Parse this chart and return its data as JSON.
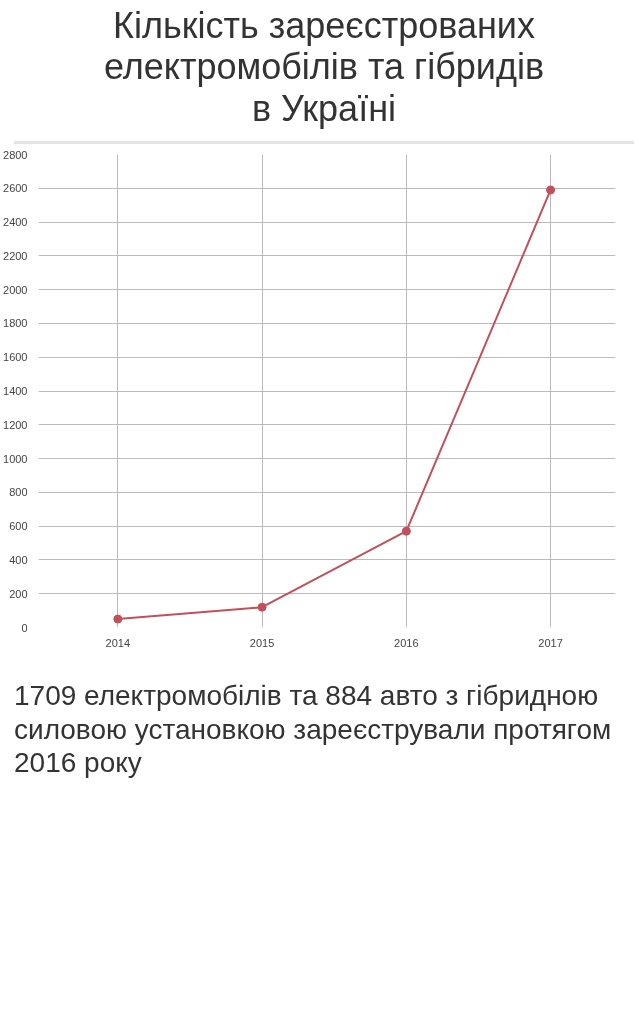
{
  "chart_data": {
    "type": "line",
    "title": "Кількість зареєстрованих\nелектромобілів та гібридів\nв Україні",
    "categories": [
      "2014",
      "2015",
      "2016",
      "2017"
    ],
    "series": [
      {
        "color": "#c0505a",
        "values": [
          50,
          120,
          570,
          2590
        ]
      }
    ],
    "ylim": [
      0,
      2800
    ],
    "yticks": [
      0,
      200,
      400,
      600,
      800,
      1000,
      1200,
      1400,
      1600,
      1800,
      2000,
      2200,
      2400,
      2600,
      2800
    ],
    "grid": true,
    "marker": "circle",
    "line_style": "solid",
    "annotations": [
      "1709 електромобілів та 884 авто з гібридною силовою установкою зареєстрували протягом 2016 року"
    ]
  }
}
